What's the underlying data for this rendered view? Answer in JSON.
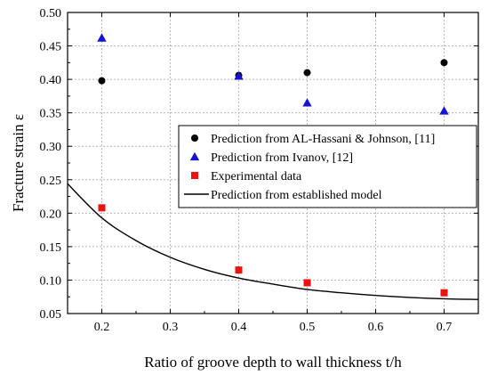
{
  "chart_data": {
    "type": "scatter",
    "xlabel": "Ratio of groove depth to wall thickness t/h",
    "ylabel": "Fracture strain ε",
    "xlim": [
      0.15,
      0.75
    ],
    "ylim": [
      0.05,
      0.5
    ],
    "x_ticks": [
      "0.2",
      "0.3",
      "0.4",
      "0.5",
      "0.6",
      "0.7"
    ],
    "y_ticks": [
      "0.05",
      "0.10",
      "0.15",
      "0.20",
      "0.25",
      "0.30",
      "0.35",
      "0.40",
      "0.45",
      "0.50"
    ],
    "x_tick_values": [
      0.2,
      0.3,
      0.4,
      0.5,
      0.6,
      0.7
    ],
    "y_tick_values": [
      0.05,
      0.1,
      0.15,
      0.2,
      0.25,
      0.3,
      0.35,
      0.4,
      0.45,
      0.5
    ],
    "grid": true,
    "legend_position": "center-right",
    "series": [
      {
        "name": "Prediction from AL-Hassani & Johnson, [11]",
        "kind": "scatter",
        "marker": "circle",
        "color": "#000000",
        "x": [
          0.2,
          0.4,
          0.5,
          0.7
        ],
        "y": [
          0.398,
          0.406,
          0.41,
          0.425
        ]
      },
      {
        "name": "Prediction from Ivanov, [12]",
        "kind": "scatter",
        "marker": "triangle",
        "color": "#1414d2",
        "x": [
          0.2,
          0.4,
          0.5,
          0.7
        ],
        "y": [
          0.462,
          0.405,
          0.365,
          0.353
        ]
      },
      {
        "name": "Experimental data",
        "kind": "scatter",
        "marker": "square",
        "color": "#ee1111",
        "x": [
          0.2,
          0.4,
          0.5,
          0.7
        ],
        "y": [
          0.208,
          0.115,
          0.096,
          0.081
        ]
      },
      {
        "name": "Prediction from established model",
        "kind": "line",
        "color": "#000000",
        "x": [
          0.15,
          0.2,
          0.25,
          0.3,
          0.35,
          0.4,
          0.45,
          0.5,
          0.55,
          0.6,
          0.65,
          0.7,
          0.75
        ],
        "y": [
          0.244,
          0.193,
          0.159,
          0.134,
          0.116,
          0.103,
          0.094,
          0.086,
          0.081,
          0.077,
          0.074,
          0.072,
          0.071
        ]
      }
    ]
  }
}
